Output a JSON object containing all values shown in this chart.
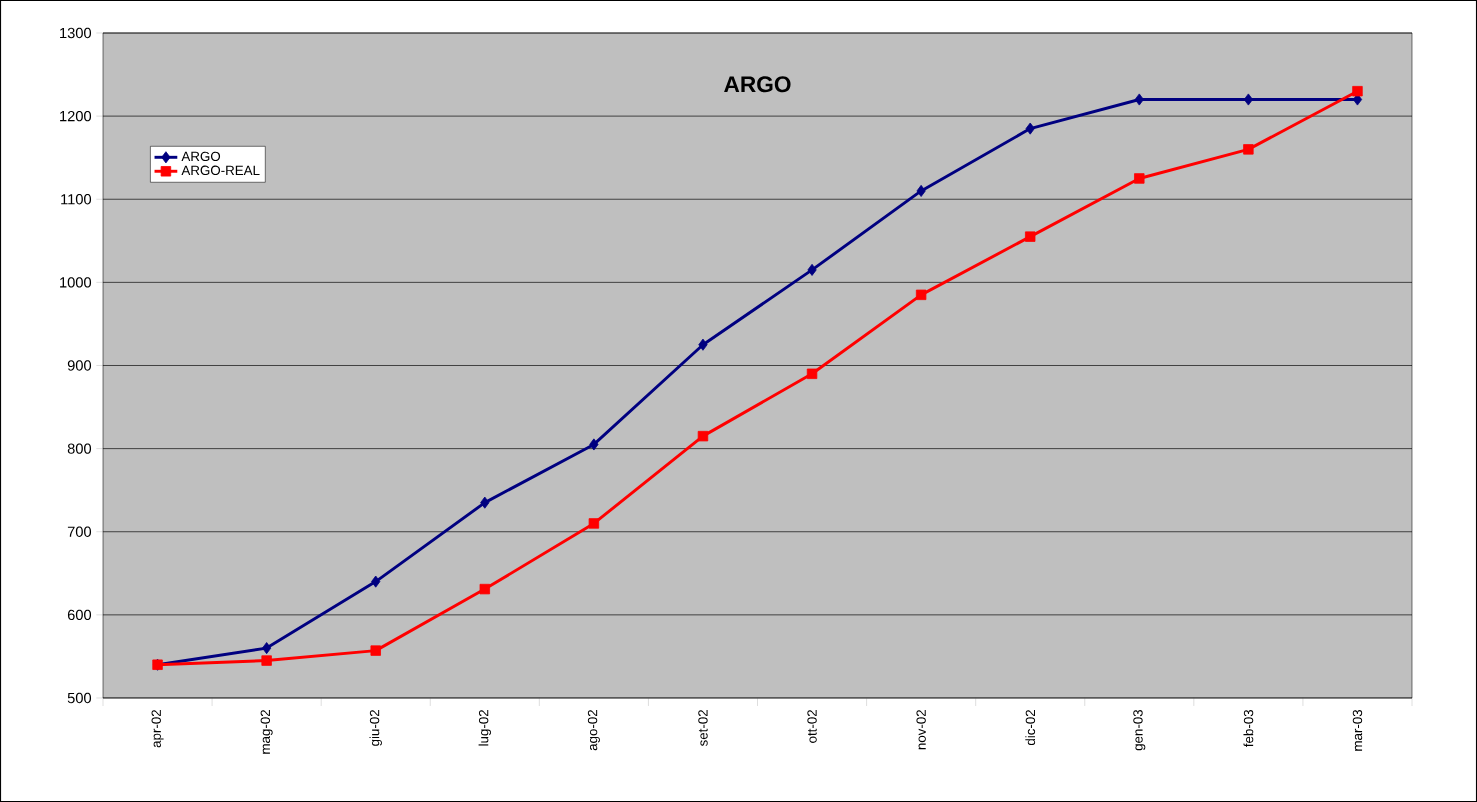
{
  "chart_data": {
    "type": "line",
    "title": "ARGO",
    "categories": [
      "apr-02",
      "mag-02",
      "giu-02",
      "lug-02",
      "ago-02",
      "set-02",
      "ott-02",
      "nov-02",
      "dic-02",
      "gen-03",
      "feb-03",
      "mar-03"
    ],
    "series": [
      {
        "name": "ARGO",
        "color": "#000080",
        "marker": "diamond",
        "values": [
          540,
          560,
          640,
          735,
          805,
          925,
          1015,
          1110,
          1185,
          1220,
          1220,
          1220
        ]
      },
      {
        "name": "ARGO-REAL",
        "color": "#ff0000",
        "marker": "square",
        "values": [
          540,
          545,
          557,
          631,
          710,
          815,
          890,
          985,
          1055,
          1125,
          1160,
          1230
        ]
      }
    ],
    "ylim": [
      500,
      1300
    ],
    "yticks": [
      500,
      600,
      700,
      800,
      900,
      1000,
      1100,
      1200,
      1300
    ],
    "grid": "y",
    "legend": "top left",
    "line_style": "solid"
  }
}
